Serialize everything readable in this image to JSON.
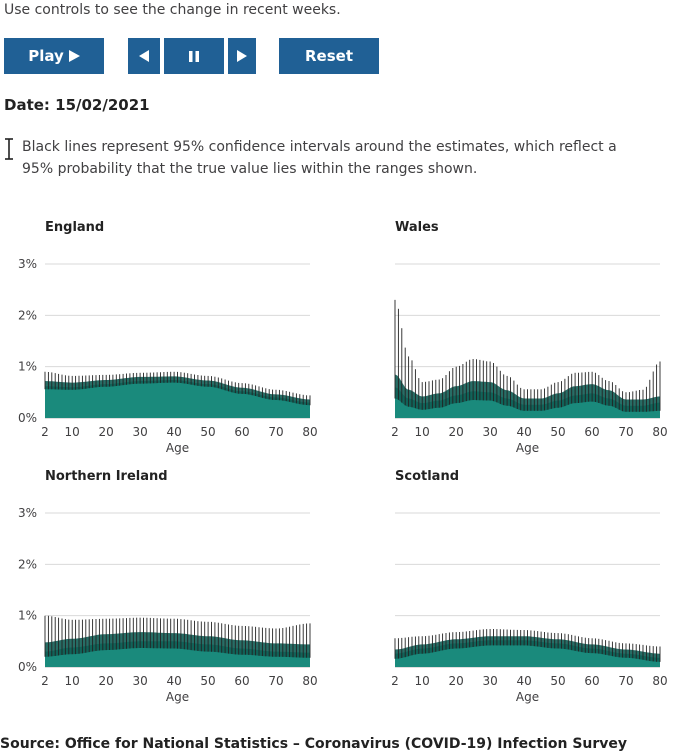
{
  "intro_text": "Use controls to see the change in recent weeks.",
  "controls": {
    "play_label": "Play",
    "reset_label": "Reset",
    "icons": [
      "play-icon",
      "step-back-icon",
      "pause-icon",
      "step-forward-icon"
    ]
  },
  "date_label": "Date: 15/02/2021",
  "legend_text": "Black lines represent 95% confidence intervals around the estimates, which reflect a 95% probability that the true value lies within the ranges shown.",
  "colors": {
    "button": "#206095",
    "area": "#1a8a7c",
    "ci_band": "#0f5e55",
    "ci_line": "#222222",
    "grid": "#d9d9d9"
  },
  "source_text": "Source: Office for National Statistics – Coronavirus (COVID-19) Infection Survey",
  "chart_data": [
    {
      "type": "area",
      "title": "England",
      "xlabel": "Age",
      "ylabel": "",
      "xlim": [
        2,
        80
      ],
      "ylim": [
        0,
        3
      ],
      "x_ticks": [
        2,
        10,
        20,
        30,
        40,
        50,
        60,
        70,
        80
      ],
      "y_ticks": [
        0,
        1,
        2,
        3
      ],
      "y_tick_labels": [
        "0%",
        "1%",
        "2%",
        "3%"
      ],
      "grid": true,
      "x": [
        2,
        10,
        20,
        30,
        40,
        50,
        60,
        70,
        80
      ],
      "series": [
        {
          "name": "",
          "values": [
            0.62,
            0.6,
            0.66,
            0.72,
            0.74,
            0.66,
            0.52,
            0.4,
            0.3
          ]
        },
        {
          "name": "",
          "values": [
            0.56,
            0.55,
            0.61,
            0.67,
            0.69,
            0.61,
            0.47,
            0.35,
            0.25
          ]
        },
        {
          "name": "",
          "values": [
            0.72,
            0.69,
            0.74,
            0.8,
            0.81,
            0.73,
            0.59,
            0.46,
            0.36
          ]
        },
        {
          "name": "",
          "values": [
            0.9,
            0.82,
            0.84,
            0.88,
            0.9,
            0.82,
            0.68,
            0.55,
            0.44
          ]
        }
      ]
    },
    {
      "type": "area",
      "title": "Wales",
      "xlabel": "Age",
      "ylabel": "",
      "xlim": [
        2,
        80
      ],
      "ylim": [
        0,
        3
      ],
      "x_ticks": [
        2,
        10,
        20,
        30,
        40,
        50,
        60,
        70,
        80
      ],
      "y_ticks": [
        0,
        1,
        2,
        3
      ],
      "y_tick_labels": [
        "0%",
        "1%",
        "2%",
        "3%"
      ],
      "grid": true,
      "x": [
        2,
        6,
        10,
        15,
        20,
        25,
        30,
        35,
        40,
        45,
        50,
        55,
        60,
        65,
        70,
        75,
        80
      ],
      "series": [
        {
          "name": "",
          "values": [
            0.6,
            0.38,
            0.29,
            0.34,
            0.44,
            0.52,
            0.5,
            0.38,
            0.26,
            0.26,
            0.34,
            0.44,
            0.48,
            0.38,
            0.24,
            0.24,
            0.3
          ]
        },
        {
          "name": "",
          "values": [
            0.38,
            0.22,
            0.16,
            0.2,
            0.29,
            0.35,
            0.34,
            0.24,
            0.14,
            0.14,
            0.2,
            0.29,
            0.32,
            0.24,
            0.12,
            0.12,
            0.14
          ]
        },
        {
          "name": "",
          "values": [
            0.85,
            0.55,
            0.42,
            0.48,
            0.62,
            0.72,
            0.7,
            0.54,
            0.38,
            0.38,
            0.48,
            0.62,
            0.66,
            0.54,
            0.36,
            0.36,
            0.42
          ]
        },
        {
          "name": "",
          "values": [
            2.3,
            1.2,
            0.7,
            0.75,
            1.0,
            1.15,
            1.1,
            0.82,
            0.56,
            0.56,
            0.7,
            0.88,
            0.9,
            0.72,
            0.5,
            0.55,
            1.1
          ]
        }
      ]
    },
    {
      "type": "area",
      "title": "Northern Ireland",
      "xlabel": "Age",
      "ylabel": "",
      "xlim": [
        2,
        80
      ],
      "ylim": [
        0,
        3
      ],
      "x_ticks": [
        2,
        10,
        20,
        30,
        40,
        50,
        60,
        70,
        80
      ],
      "y_ticks": [
        0,
        1,
        2,
        3
      ],
      "y_tick_labels": [
        "0%",
        "1%",
        "2%",
        "3%"
      ],
      "grid": true,
      "x": [
        2,
        10,
        20,
        30,
        40,
        50,
        60,
        70,
        80
      ],
      "series": [
        {
          "name": "",
          "values": [
            0.3,
            0.38,
            0.46,
            0.5,
            0.5,
            0.44,
            0.36,
            0.3,
            0.28
          ]
        },
        {
          "name": "",
          "values": [
            0.2,
            0.25,
            0.33,
            0.37,
            0.36,
            0.3,
            0.24,
            0.2,
            0.18
          ]
        },
        {
          "name": "",
          "values": [
            0.48,
            0.55,
            0.64,
            0.68,
            0.66,
            0.6,
            0.52,
            0.46,
            0.44
          ]
        },
        {
          "name": "",
          "values": [
            1.0,
            0.92,
            0.94,
            0.96,
            0.94,
            0.88,
            0.8,
            0.75,
            0.85
          ]
        }
      ]
    },
    {
      "type": "area",
      "title": "Scotland",
      "xlabel": "Age",
      "ylabel": "",
      "xlim": [
        2,
        80
      ],
      "ylim": [
        0,
        3
      ],
      "x_ticks": [
        2,
        10,
        20,
        30,
        40,
        50,
        60,
        70,
        80
      ],
      "y_ticks": [
        0,
        1,
        2,
        3
      ],
      "y_tick_labels": [
        "0%",
        "1%",
        "2%",
        "3%"
      ],
      "grid": true,
      "x": [
        2,
        10,
        20,
        30,
        40,
        50,
        60,
        70,
        80
      ],
      "series": [
        {
          "name": "",
          "values": [
            0.26,
            0.36,
            0.46,
            0.52,
            0.52,
            0.46,
            0.36,
            0.26,
            0.18
          ]
        },
        {
          "name": "",
          "values": [
            0.16,
            0.26,
            0.36,
            0.42,
            0.42,
            0.36,
            0.27,
            0.18,
            0.1
          ]
        },
        {
          "name": "",
          "values": [
            0.34,
            0.44,
            0.54,
            0.6,
            0.6,
            0.54,
            0.44,
            0.34,
            0.26
          ]
        },
        {
          "name": "",
          "values": [
            0.56,
            0.6,
            0.68,
            0.74,
            0.72,
            0.66,
            0.56,
            0.46,
            0.4
          ]
        }
      ]
    }
  ]
}
